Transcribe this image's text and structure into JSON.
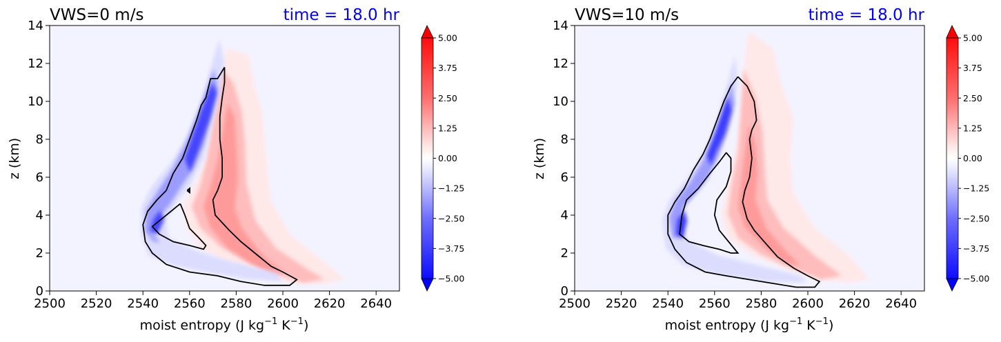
{
  "colors": {
    "background": "#f3f3ff",
    "positive": "#ff0000",
    "negative": "#0000ff",
    "time_text": "#0000ee",
    "contour": "#000000"
  },
  "chart_data": [
    {
      "type": "contourf",
      "title_left": "VWS=0 m/s",
      "title_right": "time = 18.0 hr",
      "xlabel": "moist entropy (J kg",
      "xlabel_exp1": "−1",
      "xlabel_mid": " K",
      "xlabel_exp2": "−1",
      "xlabel_end": ")",
      "ylabel": "z (km)",
      "xlim": [
        2500,
        2650
      ],
      "ylim": [
        0,
        14
      ],
      "xticks": [
        "2500",
        "2520",
        "2540",
        "2560",
        "2580",
        "2600",
        "2620",
        "2640"
      ],
      "yticks": [
        "0",
        "2",
        "4",
        "6",
        "8",
        "10",
        "12",
        "14"
      ],
      "colorbar": {
        "range": [
          -5.0,
          5.0
        ],
        "extend": "both",
        "tick_labels": [
          "5.00",
          "3.75",
          "2.50",
          "1.25",
          "0.00",
          "−1.25",
          "−2.50",
          "−3.75",
          "−5.00"
        ],
        "tick_values": [
          5.0,
          3.75,
          2.5,
          1.25,
          0.0,
          -1.25,
          -2.5,
          -3.75,
          -5.0
        ]
      },
      "contour_outer": [
        [
          2575,
          11.8
        ],
        [
          2572,
          11.2
        ],
        [
          2569,
          11.2
        ],
        [
          2567,
          10.2
        ],
        [
          2565,
          9.8
        ],
        [
          2563,
          9.0
        ],
        [
          2560,
          8.0
        ],
        [
          2557,
          7.0
        ],
        [
          2553,
          6.2
        ],
        [
          2550,
          5.3
        ],
        [
          2546,
          4.8
        ],
        [
          2542,
          4.2
        ],
        [
          2540,
          3.5
        ],
        [
          2541,
          2.6
        ],
        [
          2544,
          2.0
        ],
        [
          2550,
          1.4
        ],
        [
          2560,
          1.0
        ],
        [
          2572,
          0.8
        ],
        [
          2582,
          0.5
        ],
        [
          2592,
          0.3
        ],
        [
          2603,
          0.3
        ],
        [
          2606,
          0.6
        ],
        [
          2600,
          1.0
        ],
        [
          2595,
          1.3
        ],
        [
          2588,
          2.0
        ],
        [
          2582,
          2.6
        ],
        [
          2577,
          3.2
        ],
        [
          2574,
          3.6
        ],
        [
          2571,
          4.0
        ],
        [
          2570,
          4.8
        ],
        [
          2572,
          5.3
        ],
        [
          2574,
          6.0
        ],
        [
          2574,
          7.0
        ],
        [
          2573,
          8.0
        ],
        [
          2573,
          8.4
        ],
        [
          2573,
          9.2
        ],
        [
          2574,
          10.2
        ],
        [
          2575,
          11.0
        ],
        [
          2575,
          11.8
        ]
      ],
      "contour_inner": [
        [
          2556,
          4.6
        ],
        [
          2552,
          4.2
        ],
        [
          2547,
          3.7
        ],
        [
          2544,
          3.4
        ],
        [
          2547,
          3.0
        ],
        [
          2553,
          2.6
        ],
        [
          2560,
          2.4
        ],
        [
          2566,
          2.2
        ],
        [
          2567,
          2.4
        ],
        [
          2564,
          2.8
        ],
        [
          2560,
          3.3
        ],
        [
          2558,
          4.0
        ],
        [
          2556,
          4.6
        ]
      ],
      "contour_small": [
        [
          2559,
          5.3
        ],
        [
          2560,
          5.4
        ],
        [
          2560,
          5.2
        ],
        [
          2559,
          5.3
        ]
      ]
    },
    {
      "type": "contourf",
      "title_left": "VWS=10 m/s",
      "title_right": "time = 18.0 hr",
      "xlabel": "moist entropy (J kg",
      "xlabel_exp1": "−1",
      "xlabel_mid": " K",
      "xlabel_exp2": "−1",
      "xlabel_end": ")",
      "ylabel": "z (km)",
      "xlim": [
        2500,
        2650
      ],
      "ylim": [
        0,
        14
      ],
      "xticks": [
        "2500",
        "2520",
        "2540",
        "2560",
        "2580",
        "2600",
        "2620",
        "2640"
      ],
      "yticks": [
        "0",
        "2",
        "4",
        "6",
        "8",
        "10",
        "12",
        "14"
      ],
      "colorbar": {
        "range": [
          -5.0,
          5.0
        ],
        "extend": "both",
        "tick_labels": [
          "5.00",
          "3.75",
          "2.50",
          "1.25",
          "0.00",
          "−1.25",
          "−2.50",
          "−3.75",
          "−5.00"
        ],
        "tick_values": [
          5.0,
          3.75,
          2.5,
          1.25,
          0.0,
          -1.25,
          -2.5,
          -3.75,
          -5.0
        ]
      },
      "contour_outer": [
        [
          2570,
          11.3
        ],
        [
          2567,
          10.8
        ],
        [
          2564,
          10.0
        ],
        [
          2561,
          9.0
        ],
        [
          2558,
          8.0
        ],
        [
          2555,
          7.2
        ],
        [
          2551,
          6.4
        ],
        [
          2547,
          5.4
        ],
        [
          2543,
          4.7
        ],
        [
          2540,
          4.0
        ],
        [
          2540,
          3.0
        ],
        [
          2543,
          2.2
        ],
        [
          2548,
          1.5
        ],
        [
          2556,
          1.0
        ],
        [
          2565,
          0.8
        ],
        [
          2575,
          0.6
        ],
        [
          2585,
          0.4
        ],
        [
          2595,
          0.2
        ],
        [
          2603,
          0.2
        ],
        [
          2605,
          0.5
        ],
        [
          2600,
          0.8
        ],
        [
          2594,
          1.2
        ],
        [
          2587,
          1.8
        ],
        [
          2582,
          2.5
        ],
        [
          2577,
          3.2
        ],
        [
          2574,
          3.8
        ],
        [
          2572,
          4.7
        ],
        [
          2573,
          5.3
        ],
        [
          2575,
          6.0
        ],
        [
          2576,
          7.0
        ],
        [
          2575,
          8.0
        ],
        [
          2576,
          8.5
        ],
        [
          2578,
          9.0
        ],
        [
          2577,
          10.0
        ],
        [
          2574,
          10.8
        ],
        [
          2570,
          11.3
        ]
      ],
      "contour_inner": [
        [
          2565,
          7.3
        ],
        [
          2562,
          6.8
        ],
        [
          2558,
          6.2
        ],
        [
          2553,
          5.4
        ],
        [
          2548,
          4.8
        ],
        [
          2546,
          4.0
        ],
        [
          2545,
          3.0
        ],
        [
          2549,
          2.6
        ],
        [
          2555,
          2.4
        ],
        [
          2562,
          2.2
        ],
        [
          2567,
          2.0
        ],
        [
          2570,
          2.0
        ],
        [
          2566,
          2.6
        ],
        [
          2562,
          3.2
        ],
        [
          2560,
          4.0
        ],
        [
          2561,
          4.8
        ],
        [
          2565,
          5.5
        ],
        [
          2567,
          6.3
        ],
        [
          2567,
          7.0
        ],
        [
          2565,
          7.3
        ]
      ]
    }
  ]
}
